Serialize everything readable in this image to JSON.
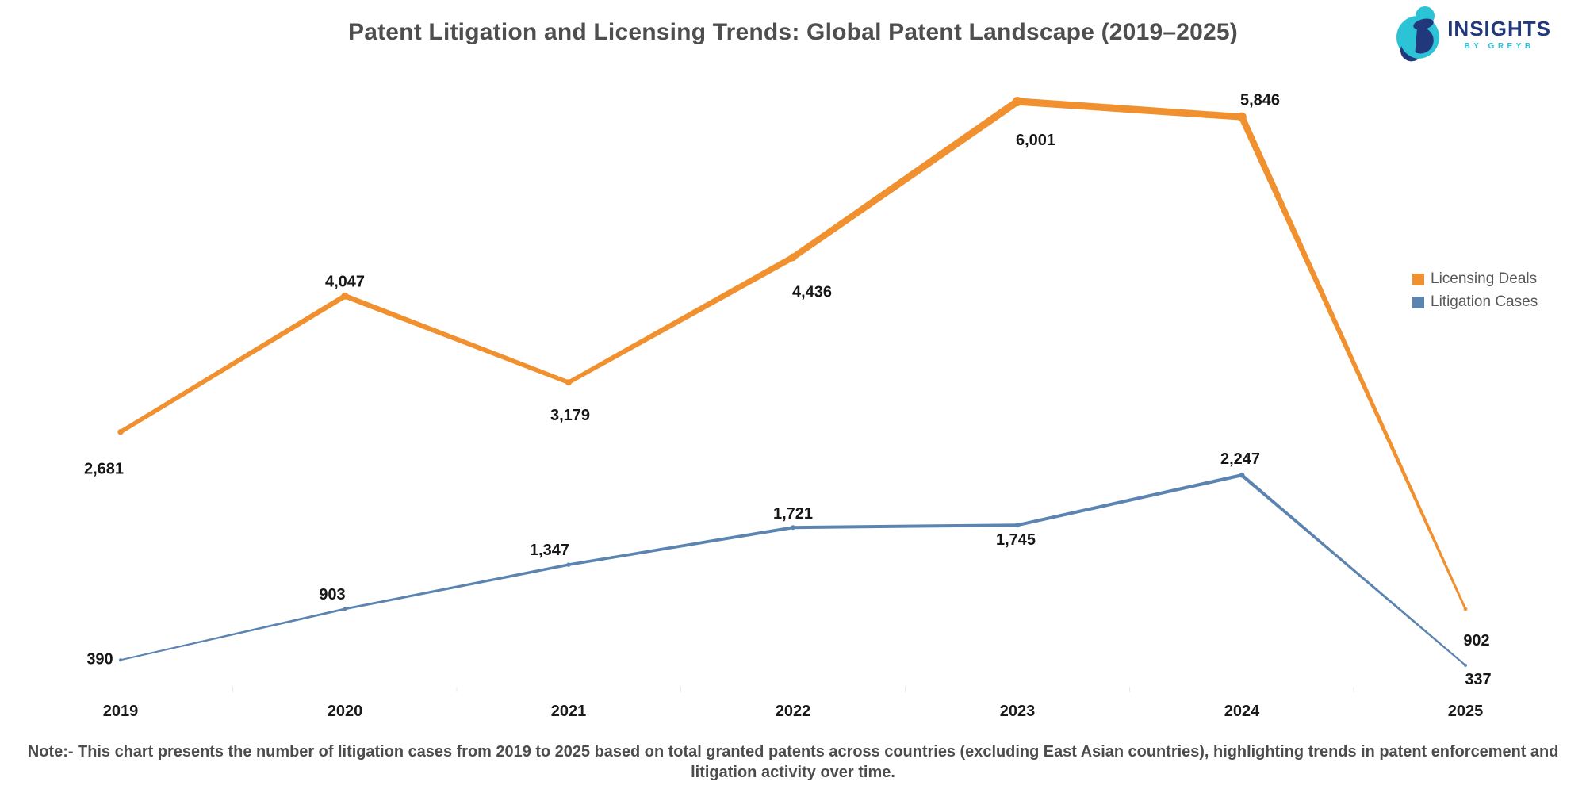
{
  "title": "Patent Litigation and Licensing Trends: Global Patent Landscape (2019–2025)",
  "logo": {
    "name": "INSIGHTS",
    "tagline": "BY GREYB",
    "navy": "#21397c",
    "teal": "#2cc3d7"
  },
  "legend": {
    "items": [
      {
        "label": "Licensing Deals",
        "color": "#f0902e"
      },
      {
        "label": "Litigation Cases",
        "color": "#5b84b1"
      }
    ]
  },
  "chart_data": {
    "type": "line",
    "title": "Patent Litigation and Licensing Trends: Global Patent Landscape (2019–2025)",
    "x": [
      2019,
      2020,
      2021,
      2022,
      2023,
      2024,
      2025
    ],
    "series": [
      {
        "name": "Licensing Deals",
        "color": "#f0902e",
        "values": [
          2681,
          4047,
          3179,
          4436,
          6001,
          5846,
          902
        ],
        "labels": [
          "2,681",
          "4,047",
          "3,179",
          "4,436",
          "6,001",
          "5,846",
          "902"
        ]
      },
      {
        "name": "Litigation Cases",
        "color": "#5b84b1",
        "values": [
          390,
          903,
          1347,
          1721,
          1745,
          2247,
          337
        ],
        "labels": [
          "390",
          "903",
          "1,347",
          "1,721",
          "1,745",
          "2,247",
          "337"
        ]
      }
    ],
    "xlabel": "",
    "ylabel": "",
    "ylim": [
      0,
      6500
    ],
    "grid": false,
    "legend_position": "right",
    "value_labels": true,
    "style": "tapered-line-width-proportional-to-value"
  },
  "footnote": {
    "lines": [
      "Note:- This chart presents the number of litigation cases from 2019 to 2025 based on total granted patents across countries (excluding East Asian countries), highlighting trends in patent enforcement and",
      "litigation activity over time."
    ]
  }
}
